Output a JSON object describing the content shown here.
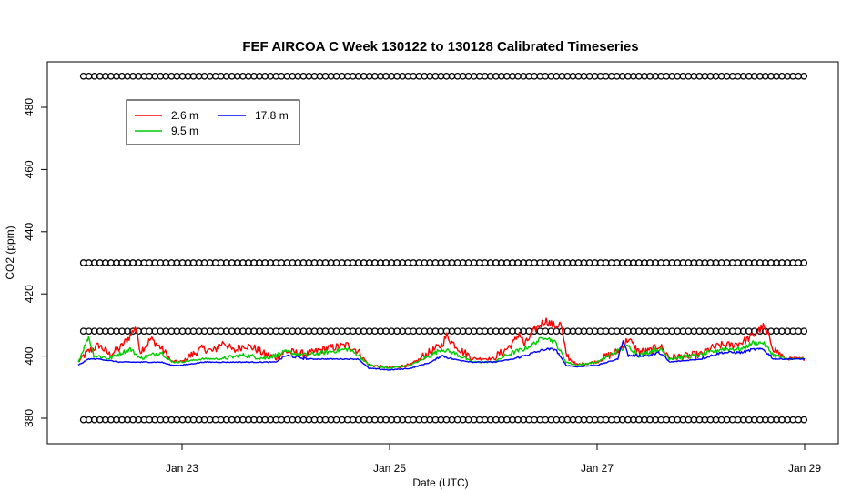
{
  "chart_data": {
    "type": "line",
    "title": "FEF AIRCOA C  Week 130122 to 130128  Calibrated Timeseries",
    "xlabel": "Date (UTC)",
    "ylabel": "CO2 (ppm)",
    "xlim": [
      22.0,
      29.0
    ],
    "ylim": [
      372,
      492
    ],
    "x_ticks": [
      {
        "value": 23,
        "label": "Jan 23"
      },
      {
        "value": 25,
        "label": "Jan 25"
      },
      {
        "value": 27,
        "label": "Jan 27"
      },
      {
        "value": 29,
        "label": "Jan 29"
      }
    ],
    "y_ticks": [
      380,
      400,
      420,
      440,
      460,
      480
    ],
    "legend": {
      "placement": "top-left",
      "entries": [
        {
          "label": "2.6 m",
          "color": "#ff0000"
        },
        {
          "label": "9.5 m",
          "color": "#00cc00"
        },
        {
          "label": "17.8 m",
          "color": "#0000ff"
        }
      ]
    },
    "reference_markers": {
      "marker": "circle",
      "levels": [
        490,
        430,
        408,
        379.5
      ],
      "x_start": 22.05,
      "x_end": 29.0
    },
    "series": [
      {
        "name": "2.6 m",
        "color": "#ff0000",
        "points": [
          [
            22.0,
            398
          ],
          [
            22.1,
            401
          ],
          [
            22.2,
            403
          ],
          [
            22.3,
            400
          ],
          [
            22.4,
            402
          ],
          [
            22.5,
            406
          ],
          [
            22.55,
            409
          ],
          [
            22.6,
            401
          ],
          [
            22.7,
            405
          ],
          [
            22.8,
            402
          ],
          [
            22.9,
            398
          ],
          [
            23.0,
            398
          ],
          [
            23.1,
            400
          ],
          [
            23.2,
            402
          ],
          [
            23.3,
            401
          ],
          [
            23.4,
            404
          ],
          [
            23.5,
            401
          ],
          [
            23.6,
            403
          ],
          [
            23.7,
            402
          ],
          [
            23.8,
            400
          ],
          [
            23.9,
            399
          ],
          [
            24.0,
            401
          ],
          [
            24.2,
            400
          ],
          [
            24.4,
            402
          ],
          [
            24.6,
            403
          ],
          [
            24.7,
            401
          ],
          [
            24.8,
            397
          ],
          [
            25.0,
            396
          ],
          [
            25.2,
            397
          ],
          [
            25.3,
            399
          ],
          [
            25.4,
            401
          ],
          [
            25.5,
            403
          ],
          [
            25.55,
            406
          ],
          [
            25.6,
            404
          ],
          [
            25.7,
            401
          ],
          [
            25.8,
            399
          ],
          [
            26.0,
            399
          ],
          [
            26.1,
            401
          ],
          [
            26.2,
            404
          ],
          [
            26.25,
            407
          ],
          [
            26.3,
            403
          ],
          [
            26.4,
            408
          ],
          [
            26.5,
            411
          ],
          [
            26.6,
            409
          ],
          [
            26.65,
            410
          ],
          [
            26.7,
            400
          ],
          [
            26.8,
            397
          ],
          [
            27.0,
            398
          ],
          [
            27.2,
            401
          ],
          [
            27.3,
            405
          ],
          [
            27.4,
            401
          ],
          [
            27.5,
            401
          ],
          [
            27.6,
            403
          ],
          [
            27.7,
            399
          ],
          [
            28.0,
            400
          ],
          [
            28.1,
            402
          ],
          [
            28.2,
            403
          ],
          [
            28.3,
            403
          ],
          [
            28.4,
            404
          ],
          [
            28.5,
            406
          ],
          [
            28.6,
            409
          ],
          [
            28.65,
            406
          ],
          [
            28.7,
            402
          ],
          [
            28.8,
            399
          ],
          [
            29.0,
            399
          ]
        ]
      },
      {
        "name": "9.5 m",
        "color": "#00cc00",
        "points": [
          [
            22.0,
            398
          ],
          [
            22.1,
            406
          ],
          [
            22.15,
            400
          ],
          [
            22.3,
            399
          ],
          [
            22.5,
            402
          ],
          [
            22.6,
            399
          ],
          [
            22.8,
            401
          ],
          [
            22.9,
            398
          ],
          [
            23.0,
            398
          ],
          [
            23.2,
            399
          ],
          [
            23.4,
            399
          ],
          [
            23.6,
            400
          ],
          [
            23.8,
            399
          ],
          [
            24.0,
            401
          ],
          [
            24.2,
            400
          ],
          [
            24.4,
            401
          ],
          [
            24.6,
            402
          ],
          [
            24.7,
            400
          ],
          [
            24.8,
            397
          ],
          [
            25.0,
            396
          ],
          [
            25.2,
            397
          ],
          [
            25.4,
            400
          ],
          [
            25.5,
            402
          ],
          [
            25.6,
            401
          ],
          [
            25.8,
            398
          ],
          [
            26.0,
            398
          ],
          [
            26.2,
            401
          ],
          [
            26.3,
            402
          ],
          [
            26.5,
            406
          ],
          [
            26.6,
            404
          ],
          [
            26.7,
            398
          ],
          [
            26.8,
            397
          ],
          [
            27.0,
            398
          ],
          [
            27.3,
            403
          ],
          [
            27.4,
            400
          ],
          [
            27.6,
            402
          ],
          [
            27.7,
            399
          ],
          [
            28.0,
            400
          ],
          [
            28.2,
            402
          ],
          [
            28.4,
            402
          ],
          [
            28.5,
            404
          ],
          [
            28.6,
            404
          ],
          [
            28.7,
            400
          ],
          [
            28.8,
            399
          ],
          [
            29.0,
            399
          ]
        ]
      },
      {
        "name": "17.8 m",
        "color": "#0000ff",
        "points": [
          [
            22.0,
            397
          ],
          [
            22.1,
            399
          ],
          [
            22.2,
            399
          ],
          [
            22.4,
            398
          ],
          [
            22.6,
            398
          ],
          [
            22.8,
            398
          ],
          [
            22.9,
            397
          ],
          [
            23.0,
            397
          ],
          [
            23.2,
            398
          ],
          [
            23.4,
            398
          ],
          [
            23.6,
            398
          ],
          [
            23.8,
            398
          ],
          [
            23.9,
            398
          ],
          [
            24.0,
            400
          ],
          [
            24.2,
            399
          ],
          [
            24.4,
            399
          ],
          [
            24.6,
            399
          ],
          [
            24.7,
            399
          ],
          [
            24.8,
            396
          ],
          [
            25.0,
            395.5
          ],
          [
            25.2,
            396
          ],
          [
            25.4,
            398
          ],
          [
            25.5,
            400
          ],
          [
            25.6,
            399
          ],
          [
            25.8,
            398
          ],
          [
            26.0,
            398
          ],
          [
            26.2,
            399
          ],
          [
            26.3,
            400
          ],
          [
            26.5,
            402
          ],
          [
            26.6,
            402
          ],
          [
            26.7,
            397
          ],
          [
            26.8,
            396.5
          ],
          [
            27.0,
            397
          ],
          [
            27.2,
            399
          ],
          [
            27.25,
            405
          ],
          [
            27.3,
            400
          ],
          [
            27.5,
            400
          ],
          [
            27.6,
            401
          ],
          [
            27.7,
            398
          ],
          [
            28.0,
            399
          ],
          [
            28.2,
            401
          ],
          [
            28.4,
            401
          ],
          [
            28.5,
            402
          ],
          [
            28.6,
            402
          ],
          [
            28.7,
            399
          ],
          [
            28.8,
            399
          ],
          [
            29.0,
            399
          ]
        ]
      }
    ]
  }
}
